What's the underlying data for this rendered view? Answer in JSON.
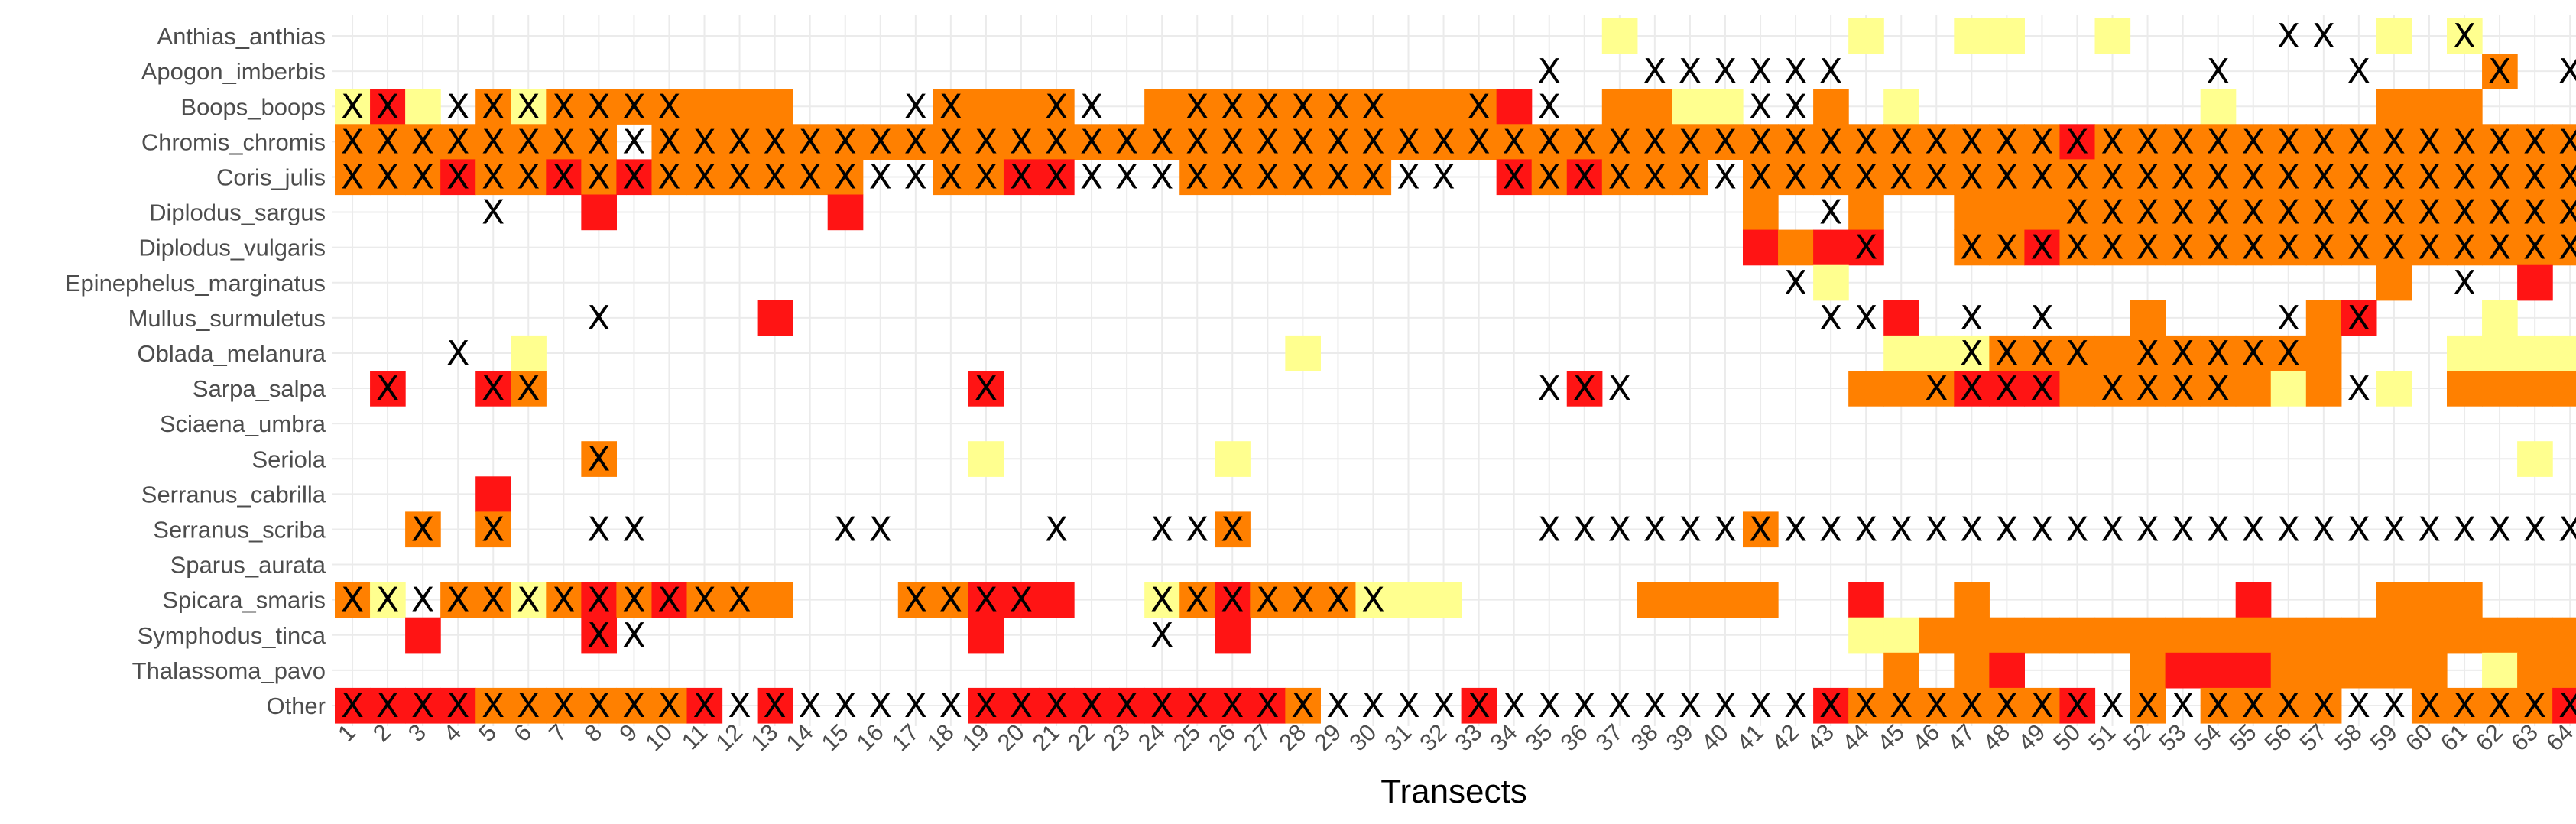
{
  "chart_data": {
    "type": "heatmap",
    "title": "",
    "xlabel": "Transects",
    "ylabel": "",
    "colors": {
      "0": "#ffffff",
      "1": "#ffff8f",
      "2": "#ff8000",
      "3": "#ff1414",
      "grid": "#ebebeb",
      "text": "#4d4d4d"
    },
    "x_categories": [
      "1",
      "2",
      "3",
      "4",
      "5",
      "6",
      "7",
      "8",
      "9",
      "10",
      "11",
      "12",
      "13",
      "14",
      "15",
      "16",
      "17",
      "18",
      "19",
      "20",
      "21",
      "22",
      "23",
      "24",
      "25",
      "26",
      "27",
      "28",
      "29",
      "30",
      "31",
      "32",
      "33",
      "34",
      "35",
      "36",
      "37",
      "38",
      "39",
      "40",
      "41",
      "42",
      "43",
      "44",
      "45",
      "46",
      "47",
      "48",
      "49",
      "50",
      "51",
      "52",
      "53",
      "54",
      "55",
      "56",
      "57",
      "58",
      "59",
      "60",
      "61",
      "62",
      "63",
      "64"
    ],
    "y_categories": [
      "Anthias_anthias",
      "Apogon_imberbis",
      "Boops_boops",
      "Chromis_chromis",
      "Coris_julis",
      "Diplodus_sargus",
      "Diplodus_vulgaris",
      "Epinephelus_marginatus",
      "Mullus_surmuletus",
      "Oblada_melanura",
      "Sarpa_salpa",
      "Sciaena_umbra",
      "Seriola",
      "Serranus_cabrilla",
      "Serranus_scriba",
      "Sparus_aurata",
      "Spicara_smaris",
      "Symphodus_tinca",
      "Thalassoma_pavo",
      "Other"
    ],
    "levels_legend": {
      "0": "absent",
      "1": "light yellow",
      "2": "orange",
      "3": "red"
    },
    "levels": [
      "0000000000000000000000000000000000001000000100110010000000101000",
      "0000000000000000000000000000000000000000000000000000000000000200",
      "1310212222222000022220022222222223002211002010000000010000222000",
      "2222222202222222222222222222222222222222222222222322222222222222",
      "2223223232222220022330002222220003232220222222222222222222222222",
      "0000000300000030000000000000000000000000200200222222222222222222",
      "0000000000000000000000000000000000000000323300223222222222222222",
      "0000000000000000000000000000000000000000001000000000000000200030",
      "0000000000003000000000000000000000000000000030000002000023000100",
      "0000010000000000000000000001000000000000000011122222222220001111",
      "0300320000000000003000000000000000030000000222333222222120102222",
      "0000000000000000000000000000000000000000000000000000000000000000",
      "0000000200000000001000000100000000000000000000000000000000000010",
      "0000300000000000000000000000000000000000000000000000000000000000",
      "0020200000000000000000000200000000000000200000000000000000000000",
      "0000000000000000000000000000000000000000000000000000000000000000",
      "2102212323222000223330012322211100000222200300200000003000222000",
      "0030000300000000003000000300000000000000000112222222222222222222",
      "0000000000000000000000000000000000000000000020230002333222220122",
      "3333222222303000003333333332000030000000003222222302022220022223"
    ],
    "crosses": [
      "0000000000000000000000000000000000000000000000000000000110001000",
      "0000000000000000000000000000000000100111111000000000010001000101",
      "1101111111000000110011001111110010100000110000000000000000000000",
      "1111111111111111111111111111111111111111111111111111111111111111",
      "1111111111111111111111111111111101111111111111111111111111111111",
      "0000100000000000000000000000000000000000001000000111111111111111",
      "0000000000000000000000000000000000000000000100111111111111111111",
      "0000000000000000000000000000000000000000010000000000000000001000",
      "0000000100000000000000000000000000000000001100101000000101000000",
      "0001000000000000000000000000000000000000000000111101111100000000",
      "0100110000000000001000000000000000111000000001111011110001000000",
      "0000000000000000000000000000000000000000000000000000000000000000",
      "0000000100000000000000000000000000000000000000000000000000000000",
      "0000000000000000000000000000000000000000000000000000000000000000",
      "0010100110000011000010011100000000111111111111111111111111111111",
      "0000000000000000000000000000000000000000000000000000000000000000",
      "1111111111110000111100011111110000000000000000000000000000000000",
      "0000000110000000000000010000000000000000000000000000000000000000",
      "0000000000000000000000000000000000000000000000000000000000000000",
      "1111111111111111111111111111111111111111111111111111111111111111"
    ]
  }
}
